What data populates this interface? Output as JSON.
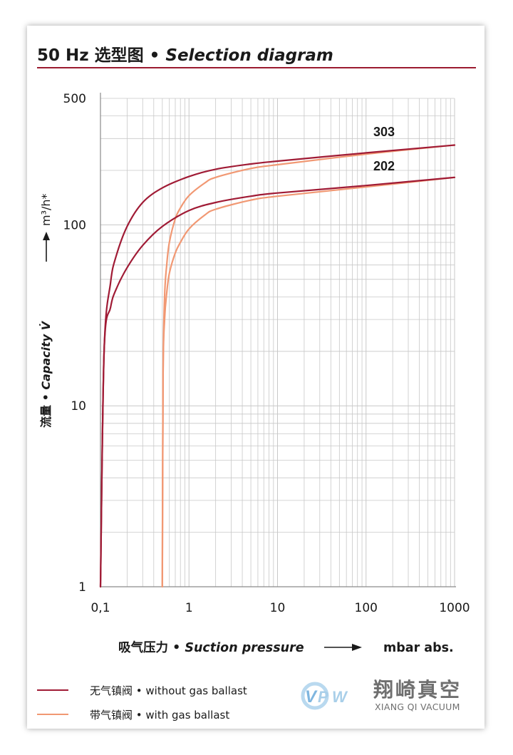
{
  "header": {
    "title_prefix": "50 Hz 选型图 • ",
    "title_italic": "Selection diagram"
  },
  "colors": {
    "without_gas_ballast": "#a01b35",
    "with_gas_ballast": "#f19873",
    "accent_rule": "#9b1b30",
    "grid": "#c8c8c8"
  },
  "chart_data": {
    "type": "line",
    "x_scale": "log",
    "y_scale": "log",
    "xlim": [
      0.1,
      1000
    ],
    "ylim": [
      1,
      500
    ],
    "x_ticks": [
      "0,1",
      "1",
      "10",
      "100",
      "1000"
    ],
    "y_ticks": [
      "1",
      "10",
      "100",
      "500"
    ],
    "grid": true,
    "ylabel_cn": "流量 • ",
    "ylabel_en": "Capacity V̇",
    "ylabel_unit": "m³/h*",
    "xlabel_cn": "吸气压力 • ",
    "xlabel_en": "Suction pressure",
    "xlabel_unit": "mbar abs.",
    "curve_labels": [
      "303",
      "202"
    ],
    "series": [
      {
        "name": "303",
        "style": "without_gas_ballast",
        "x": [
          0.1,
          0.11,
          0.13,
          0.15,
          0.2,
          0.3,
          0.5,
          1,
          2,
          5,
          10,
          100,
          1000
        ],
        "y": [
          1,
          20,
          48,
          67,
          98,
          133,
          160,
          185,
          203,
          217,
          225,
          250,
          276
        ]
      },
      {
        "name": "202",
        "style": "without_gas_ballast",
        "x": [
          0.1,
          0.11,
          0.13,
          0.15,
          0.2,
          0.3,
          0.5,
          1,
          2,
          5,
          10,
          100,
          1000
        ],
        "y": [
          1,
          20,
          35,
          44,
          58,
          77,
          98,
          120,
          133,
          144,
          150,
          165,
          183
        ]
      },
      {
        "name": "303",
        "style": "with_gas_ballast",
        "x": [
          0.5,
          0.51,
          0.53,
          0.56,
          0.6,
          0.7,
          0.8,
          1,
          1.5,
          2,
          5,
          10,
          100,
          1000
        ],
        "y": [
          1,
          15,
          40,
          60,
          80,
          108,
          124,
          145,
          170,
          183,
          205,
          215,
          246,
          276
        ]
      },
      {
        "name": "202",
        "style": "with_gas_ballast",
        "x": [
          0.5,
          0.51,
          0.53,
          0.56,
          0.6,
          0.7,
          0.8,
          1,
          1.5,
          2,
          5,
          10,
          100,
          1000
        ],
        "y": [
          1,
          15,
          30,
          42,
          54,
          70,
          80,
          95,
          113,
          122,
          137,
          144,
          162,
          183
        ]
      }
    ]
  },
  "legend": {
    "items": [
      {
        "label": "无气镇阀 • without gas ballast",
        "style": "without_gas_ballast"
      },
      {
        "label": "带气镇阀 • with gas ballast",
        "style": "with_gas_ballast"
      }
    ]
  },
  "logo": {
    "cn": "翔崎真空",
    "en": "XIANG QI VACUUM"
  }
}
